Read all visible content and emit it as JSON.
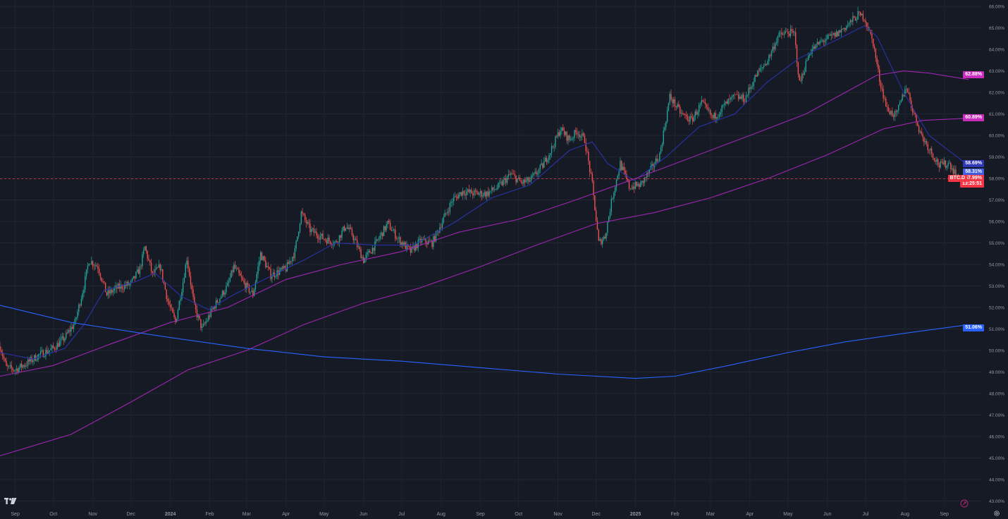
{
  "chart_data": {
    "type": "candlestick",
    "title": "",
    "xlabel": "",
    "ylabel": "",
    "ylim": [
      42.75,
      66.3
    ],
    "y_ticks": [
      "43.00%",
      "44.00%",
      "45.00%",
      "46.00%",
      "47.00%",
      "48.00%",
      "49.00%",
      "50.00%",
      "51.00%",
      "52.00%",
      "53.00%",
      "54.00%",
      "55.00%",
      "56.00%",
      "57.00%",
      "58.00%",
      "59.00%",
      "60.00%",
      "61.00%",
      "62.00%",
      "63.00%",
      "64.00%",
      "65.00%",
      "66.00%"
    ],
    "x_ticks": [
      "Sep",
      "Oct",
      "Nov",
      "Dec",
      "2024",
      "Feb",
      "Mar",
      "Apr",
      "May",
      "Jun",
      "Jul",
      "Aug",
      "Sep",
      "Oct",
      "Nov",
      "Dec",
      "2025",
      "Feb",
      "Mar",
      "Apr",
      "May",
      "Jun",
      "Jul",
      "Aug",
      "Sep"
    ],
    "x_range": [
      "2023-08-20",
      "2025-09-30"
    ],
    "grid": true,
    "close_path": [
      [
        "2023-08-20",
        50.2
      ],
      [
        "2023-08-25",
        49.2
      ],
      [
        "2023-09-01",
        49.1
      ],
      [
        "2023-09-10",
        49.4
      ],
      [
        "2023-09-20",
        49.8
      ],
      [
        "2023-10-01",
        50.1
      ],
      [
        "2023-10-10",
        50.6
      ],
      [
        "2023-10-18",
        51.3
      ],
      [
        "2023-10-25",
        53.0
      ],
      [
        "2023-10-29",
        54.2
      ],
      [
        "2023-11-05",
        53.9
      ],
      [
        "2023-11-12",
        52.6
      ],
      [
        "2023-11-20",
        52.9
      ],
      [
        "2023-12-01",
        53.1
      ],
      [
        "2023-12-08",
        53.8
      ],
      [
        "2023-12-12",
        54.8
      ],
      [
        "2023-12-18",
        53.5
      ],
      [
        "2023-12-24",
        53.9
      ],
      [
        "2023-12-30",
        52.3
      ],
      [
        "2024-01-05",
        51.3
      ],
      [
        "2024-01-11",
        53.2
      ],
      [
        "2024-01-14",
        54.3
      ],
      [
        "2024-01-20",
        52.0
      ],
      [
        "2024-01-26",
        51.0
      ],
      [
        "2024-02-05",
        52.1
      ],
      [
        "2024-02-15",
        53.0
      ],
      [
        "2024-02-20",
        53.9
      ],
      [
        "2024-02-28",
        53.1
      ],
      [
        "2024-03-06",
        52.6
      ],
      [
        "2024-03-12",
        54.5
      ],
      [
        "2024-03-20",
        53.5
      ],
      [
        "2024-04-01",
        53.8
      ],
      [
        "2024-04-08",
        54.6
      ],
      [
        "2024-04-13",
        56.4
      ],
      [
        "2024-04-20",
        55.6
      ],
      [
        "2024-05-01",
        55.2
      ],
      [
        "2024-05-10",
        55.0
      ],
      [
        "2024-05-18",
        55.8
      ],
      [
        "2024-05-23",
        55.4
      ],
      [
        "2024-06-01",
        54.2
      ],
      [
        "2024-06-10",
        54.9
      ],
      [
        "2024-06-20",
        55.9
      ],
      [
        "2024-06-28",
        55.2
      ],
      [
        "2024-07-08",
        54.6
      ],
      [
        "2024-07-16",
        55.1
      ],
      [
        "2024-07-25",
        55.0
      ],
      [
        "2024-08-02",
        56.0
      ],
      [
        "2024-08-10",
        57.0
      ],
      [
        "2024-08-18",
        57.4
      ],
      [
        "2024-08-28",
        57.3
      ],
      [
        "2024-09-06",
        57.3
      ],
      [
        "2024-09-15",
        57.6
      ],
      [
        "2024-09-25",
        58.2
      ],
      [
        "2024-10-03",
        57.8
      ],
      [
        "2024-10-10",
        57.9
      ],
      [
        "2024-10-20",
        58.6
      ],
      [
        "2024-10-28",
        59.5
      ],
      [
        "2024-11-03",
        60.3
      ],
      [
        "2024-11-10",
        59.8
      ],
      [
        "2024-11-16",
        60.2
      ],
      [
        "2024-11-22",
        59.8
      ],
      [
        "2024-11-28",
        57.7
      ],
      [
        "2024-12-03",
        55.0
      ],
      [
        "2024-12-08",
        55.3
      ],
      [
        "2024-12-14",
        57.2
      ],
      [
        "2024-12-20",
        58.7
      ],
      [
        "2024-12-27",
        57.6
      ],
      [
        "2025-01-05",
        57.7
      ],
      [
        "2025-01-13",
        58.4
      ],
      [
        "2025-01-20",
        59.1
      ],
      [
        "2025-01-28",
        61.8
      ],
      [
        "2025-02-06",
        61.0
      ],
      [
        "2025-02-14",
        60.7
      ],
      [
        "2025-02-22",
        61.5
      ],
      [
        "2025-03-03",
        60.8
      ],
      [
        "2025-03-12",
        61.4
      ],
      [
        "2025-03-20",
        61.8
      ],
      [
        "2025-03-28",
        61.7
      ],
      [
        "2025-04-06",
        62.8
      ],
      [
        "2025-04-15",
        63.5
      ],
      [
        "2025-04-23",
        64.6
      ],
      [
        "2025-05-01",
        64.8
      ],
      [
        "2025-05-06",
        64.7
      ],
      [
        "2025-05-10",
        62.4
      ],
      [
        "2025-05-18",
        63.9
      ],
      [
        "2025-05-28",
        64.4
      ],
      [
        "2025-06-08",
        64.7
      ],
      [
        "2025-06-18",
        65.2
      ],
      [
        "2025-06-25",
        65.6
      ],
      [
        "2025-06-30",
        65.5
      ],
      [
        "2025-07-07",
        64.3
      ],
      [
        "2025-07-12",
        62.6
      ],
      [
        "2025-07-18",
        61.2
      ],
      [
        "2025-07-25",
        60.9
      ],
      [
        "2025-08-02",
        62.3
      ],
      [
        "2025-08-07",
        61.2
      ],
      [
        "2025-08-14",
        60.0
      ],
      [
        "2025-08-20",
        59.4
      ],
      [
        "2025-08-28",
        58.6
      ],
      [
        "2025-09-05",
        58.7
      ],
      [
        "2025-09-12",
        58.0
      ]
    ],
    "series": [
      {
        "type": "moving-average",
        "color": "#2833a8",
        "points": [
          [
            "2023-08-20",
            49.9
          ],
          [
            "2023-09-15",
            49.6
          ],
          [
            "2023-10-10",
            50.1
          ],
          [
            "2023-10-25",
            51.2
          ],
          [
            "2023-11-10",
            52.8
          ],
          [
            "2023-12-05",
            53.2
          ],
          [
            "2023-12-20",
            53.6
          ],
          [
            "2024-01-10",
            52.5
          ],
          [
            "2024-01-31",
            51.9
          ],
          [
            "2024-02-20",
            52.6
          ],
          [
            "2024-03-15",
            53.3
          ],
          [
            "2024-04-15",
            54.2
          ],
          [
            "2024-05-10",
            55.0
          ],
          [
            "2024-06-10",
            54.9
          ],
          [
            "2024-07-10",
            54.9
          ],
          [
            "2024-08-10",
            55.9
          ],
          [
            "2024-09-10",
            57.1
          ],
          [
            "2024-10-10",
            57.7
          ],
          [
            "2024-11-10",
            59.3
          ],
          [
            "2024-11-28",
            59.7
          ],
          [
            "2024-12-10",
            58.7
          ],
          [
            "2024-12-31",
            57.9
          ],
          [
            "2025-01-25",
            59.0
          ],
          [
            "2025-02-20",
            60.4
          ],
          [
            "2025-03-20",
            61.0
          ],
          [
            "2025-04-15",
            62.5
          ],
          [
            "2025-05-10",
            63.6
          ],
          [
            "2025-06-10",
            64.5
          ],
          [
            "2025-06-30",
            65.1
          ],
          [
            "2025-07-10",
            64.6
          ],
          [
            "2025-07-31",
            62.0
          ],
          [
            "2025-08-20",
            60.0
          ],
          [
            "2025-09-20",
            58.6
          ]
        ]
      },
      {
        "type": "moving-average",
        "color": "#9c27b0",
        "points": [
          [
            "2023-08-20",
            48.8
          ],
          [
            "2023-10-01",
            49.3
          ],
          [
            "2023-11-15",
            50.3
          ],
          [
            "2024-01-01",
            51.3
          ],
          [
            "2024-02-15",
            52.0
          ],
          [
            "2024-04-01",
            53.3
          ],
          [
            "2024-05-15",
            54.0
          ],
          [
            "2024-07-01",
            54.6
          ],
          [
            "2024-08-15",
            55.5
          ],
          [
            "2024-10-01",
            56.1
          ],
          [
            "2024-11-15",
            57.0
          ],
          [
            "2025-01-01",
            58.0
          ],
          [
            "2025-02-15",
            59.0
          ],
          [
            "2025-04-01",
            60.0
          ],
          [
            "2025-05-15",
            61.0
          ],
          [
            "2025-06-15",
            62.0
          ],
          [
            "2025-07-10",
            62.8
          ],
          [
            "2025-07-31",
            63.0
          ],
          [
            "2025-08-20",
            62.9
          ],
          [
            "2025-09-20",
            62.6
          ]
        ]
      },
      {
        "type": "moving-average",
        "color": "#9c27b0",
        "points": [
          [
            "2023-08-20",
            45.1
          ],
          [
            "2023-10-15",
            46.1
          ],
          [
            "2023-12-01",
            47.6
          ],
          [
            "2024-01-15",
            49.1
          ],
          [
            "2024-03-01",
            50.0
          ],
          [
            "2024-04-15",
            51.2
          ],
          [
            "2024-06-01",
            52.2
          ],
          [
            "2024-07-15",
            52.9
          ],
          [
            "2024-09-01",
            53.9
          ],
          [
            "2024-10-15",
            54.9
          ],
          [
            "2024-12-01",
            55.9
          ],
          [
            "2025-01-15",
            56.4
          ],
          [
            "2025-03-01",
            57.1
          ],
          [
            "2025-04-15",
            58.0
          ],
          [
            "2025-06-01",
            59.1
          ],
          [
            "2025-07-15",
            60.3
          ],
          [
            "2025-08-15",
            60.7
          ],
          [
            "2025-09-20",
            60.8
          ]
        ]
      },
      {
        "type": "moving-average",
        "color": "#2962ff",
        "points": [
          [
            "2023-08-20",
            52.1
          ],
          [
            "2023-10-15",
            51.3
          ],
          [
            "2024-01-01",
            50.6
          ],
          [
            "2024-03-01",
            50.1
          ],
          [
            "2024-05-01",
            49.7
          ],
          [
            "2024-07-01",
            49.5
          ],
          [
            "2024-09-01",
            49.2
          ],
          [
            "2024-11-01",
            48.9
          ],
          [
            "2025-01-01",
            48.7
          ],
          [
            "2025-02-01",
            48.8
          ],
          [
            "2025-03-15",
            49.3
          ],
          [
            "2025-05-01",
            49.9
          ],
          [
            "2025-06-15",
            50.4
          ],
          [
            "2025-08-01",
            50.8
          ],
          [
            "2025-09-20",
            51.2
          ]
        ]
      }
    ],
    "price_tags": [
      {
        "value": "62.88%",
        "y": 62.83,
        "color": "#c92dbc"
      },
      {
        "value": "60.89%",
        "y": 60.83,
        "color": "#c92dbc"
      },
      {
        "value": "58.69%",
        "y": 58.69,
        "color": "#3138b8"
      },
      {
        "value": "58.31%",
        "y": 58.31,
        "color": "#3f5fe0"
      },
      {
        "value": "51.06%",
        "y": 51.06,
        "color": "#2962ff"
      }
    ],
    "last_price": {
      "symbol": "BTC.D",
      "value": "57.99%",
      "countdown": "13:25:51",
      "y": 57.99,
      "color": "#f23645"
    }
  }
}
